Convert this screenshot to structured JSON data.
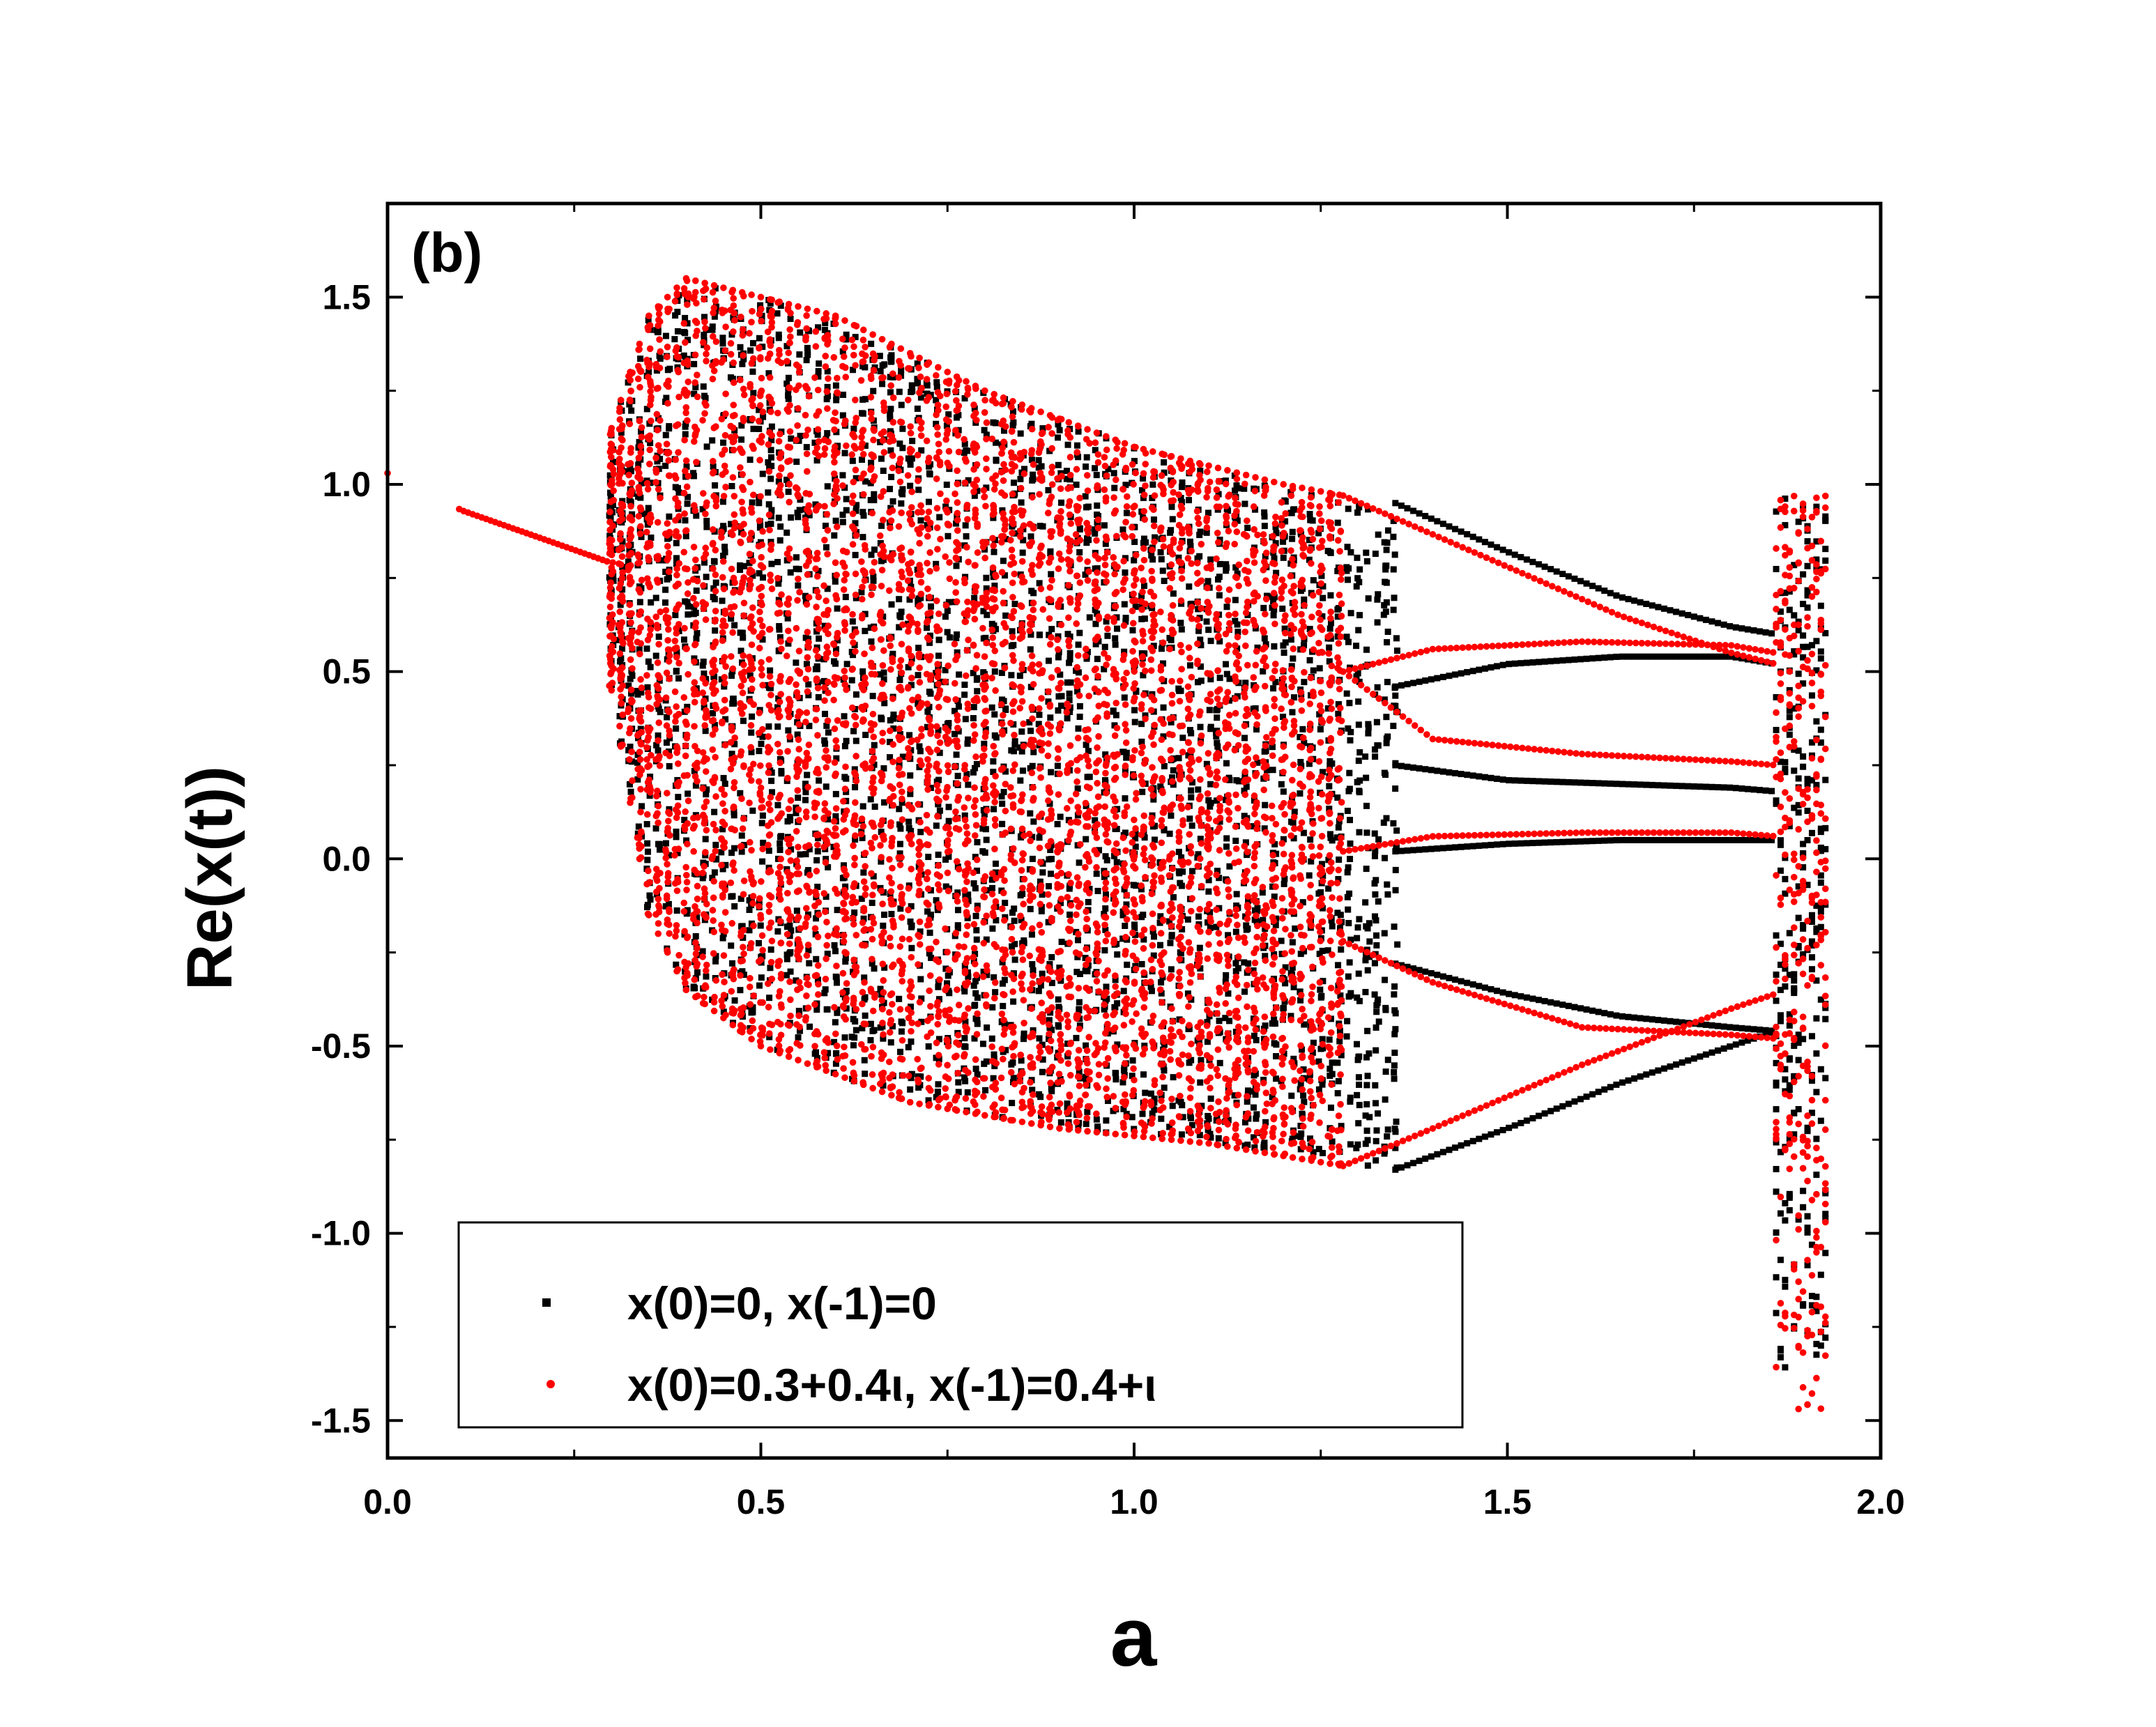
{
  "chart_data": {
    "type": "scatter",
    "panel_label": "(b)",
    "xlabel": "a",
    "ylabel": "Re(x(t))",
    "xlim": [
      0.0,
      2.0
    ],
    "ylim": [
      -1.6,
      1.75
    ],
    "x_ticks": [
      "0.0",
      "0.5",
      "1.0",
      "1.5",
      "2.0"
    ],
    "y_ticks": [
      "1.5",
      "1.0",
      "0.5",
      "0.0",
      "-0.5",
      "-1.0",
      "-1.5"
    ],
    "grid": false,
    "legend_position": "bottom-left",
    "colors": {
      "series_1": "#000000",
      "series_2": "#ff0000"
    },
    "series": [
      {
        "name": "x(0)=0, x(-1)=0",
        "marker": "square",
        "description_regions": {
          "chaotic_band": {
            "a_range": [
              0.3,
              1.35
            ],
            "upper_edge": [
              [
                0.3,
                1.15
              ],
              [
                0.35,
                1.45
              ],
              [
                0.4,
                1.55
              ],
              [
                0.6,
                1.45
              ],
              [
                0.8,
                1.25
              ],
              [
                1.0,
                1.1
              ],
              [
                1.2,
                1.0
              ],
              [
                1.35,
                0.95
              ]
            ],
            "lower_edge": [
              [
                0.3,
                0.45
              ],
              [
                0.35,
                -0.15
              ],
              [
                0.4,
                -0.35
              ],
              [
                0.5,
                -0.5
              ],
              [
                0.7,
                -0.65
              ],
              [
                0.9,
                -0.72
              ],
              [
                1.1,
                -0.76
              ],
              [
                1.35,
                -0.83
              ]
            ]
          },
          "period_branches": [
            [
              [
                1.35,
                0.95
              ],
              [
                1.5,
                0.82
              ],
              [
                1.65,
                0.7
              ],
              [
                1.8,
                0.62
              ],
              [
                1.86,
                0.6
              ]
            ],
            [
              [
                1.35,
                0.46
              ],
              [
                1.5,
                0.52
              ],
              [
                1.65,
                0.54
              ],
              [
                1.8,
                0.54
              ],
              [
                1.86,
                0.52
              ]
            ],
            [
              [
                1.35,
                0.25
              ],
              [
                1.5,
                0.21
              ],
              [
                1.65,
                0.2
              ],
              [
                1.8,
                0.19
              ],
              [
                1.86,
                0.18
              ]
            ],
            [
              [
                1.35,
                0.02
              ],
              [
                1.5,
                0.04
              ],
              [
                1.65,
                0.05
              ],
              [
                1.8,
                0.05
              ],
              [
                1.86,
                0.05
              ]
            ],
            [
              [
                1.35,
                -0.28
              ],
              [
                1.5,
                -0.36
              ],
              [
                1.65,
                -0.42
              ],
              [
                1.8,
                -0.45
              ],
              [
                1.86,
                -0.46
              ]
            ],
            [
              [
                1.35,
                -0.83
              ],
              [
                1.5,
                -0.72
              ],
              [
                1.65,
                -0.6
              ],
              [
                1.8,
                -0.5
              ],
              [
                1.86,
                -0.46
              ]
            ]
          ],
          "chaotic_window": {
            "a_range": [
              1.86,
              1.93
            ],
            "y_range": [
              -1.42,
              0.97
            ]
          }
        }
      },
      {
        "name": "x(0)=0.3+0.4ι, x(-1)=0.4+ι",
        "marker": "circle",
        "description_regions": {
          "fixed_point_line": [
            [
              0.0,
              1.03
            ],
            [
              0.1,
              0.93
            ],
            [
              0.2,
              0.86
            ],
            [
              0.3,
              0.79
            ]
          ],
          "chaotic_band": {
            "a_range": [
              0.3,
              1.28
            ],
            "upper_edge": [
              [
                0.3,
                1.15
              ],
              [
                0.35,
                1.45
              ],
              [
                0.4,
                1.55
              ],
              [
                0.6,
                1.45
              ],
              [
                0.8,
                1.25
              ],
              [
                1.0,
                1.1
              ],
              [
                1.2,
                1.0
              ],
              [
                1.28,
                0.97
              ]
            ],
            "lower_edge": [
              [
                0.3,
                0.45
              ],
              [
                0.35,
                -0.15
              ],
              [
                0.4,
                -0.35
              ],
              [
                0.5,
                -0.5
              ],
              [
                0.7,
                -0.65
              ],
              [
                0.9,
                -0.72
              ],
              [
                1.1,
                -0.76
              ],
              [
                1.28,
                -0.82
              ]
            ]
          },
          "period_branches": [
            [
              [
                1.28,
                0.97
              ],
              [
                1.5,
                0.78
              ],
              [
                1.65,
                0.65
              ],
              [
                1.8,
                0.55
              ],
              [
                1.86,
                0.52
              ]
            ],
            [
              [
                1.28,
                0.5
              ],
              [
                1.4,
                0.56
              ],
              [
                1.6,
                0.58
              ],
              [
                1.8,
                0.57
              ],
              [
                1.86,
                0.55
              ]
            ],
            [
              [
                1.28,
                0.5
              ],
              [
                1.4,
                0.32
              ],
              [
                1.6,
                0.28
              ],
              [
                1.8,
                0.26
              ],
              [
                1.86,
                0.25
              ]
            ],
            [
              [
                1.28,
                0.02
              ],
              [
                1.4,
                0.06
              ],
              [
                1.6,
                0.07
              ],
              [
                1.8,
                0.07
              ],
              [
                1.86,
                0.06
              ]
            ],
            [
              [
                1.28,
                -0.22
              ],
              [
                1.4,
                -0.33
              ],
              [
                1.6,
                -0.45
              ],
              [
                1.8,
                -0.47
              ],
              [
                1.86,
                -0.48
              ]
            ],
            [
              [
                1.28,
                -0.82
              ],
              [
                1.4,
                -0.72
              ],
              [
                1.6,
                -0.55
              ],
              [
                1.8,
                -0.4
              ],
              [
                1.86,
                -0.36
              ]
            ]
          ],
          "chaotic_window": {
            "a_range": [
              1.86,
              1.93
            ],
            "y_range": [
              -1.5,
              0.97
            ]
          }
        }
      }
    ]
  }
}
